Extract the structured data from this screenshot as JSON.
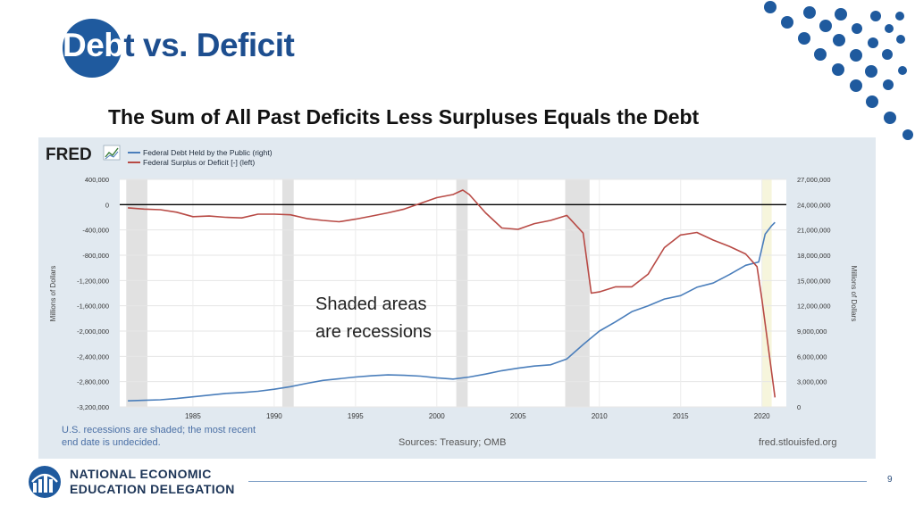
{
  "slide": {
    "title_part1": "Deb",
    "title_part2": "t vs. Deficit",
    "subtitle": "The Sum of All Past Deficits Less Surpluses Equals the Debt",
    "annotation_line1": "Shaded areas",
    "annotation_line2": "are recessions",
    "org_line1": "NATIONAL ECONOMIC",
    "org_line2": "EDUCATION DELEGATION",
    "page_number": "9"
  },
  "colors": {
    "brand_blue": "#1f5a9e",
    "debt_line": "#4a7ebb",
    "deficit_line": "#b84a45",
    "recession_shade": "#e1e1e1",
    "chart_background": "#e1e9f0",
    "plot_background": "#ffffff"
  },
  "chart_data": {
    "type": "line",
    "brand": "FRED",
    "x_ticks": [
      "1985",
      "1990",
      "1995",
      "2000",
      "2005",
      "2010",
      "2015",
      "2020"
    ],
    "x_range": [
      1980.5,
      2021.5
    ],
    "left_axis": {
      "label": "Millions of Dollars",
      "range": [
        -3200000,
        400000
      ],
      "ticks": [
        400000,
        0,
        -400000,
        -800000,
        -1200000,
        -1600000,
        -2000000,
        -2400000,
        -2800000,
        -3200000
      ],
      "tick_labels": [
        "400,000",
        "0",
        "-400,000",
        "-800,000",
        "-1,200,000",
        "-1,600,000",
        "-2,000,000",
        "-2,400,000",
        "-2,800,000",
        "-3,200,000"
      ]
    },
    "right_axis": {
      "label": "Millions of Dollars",
      "range": [
        0,
        27000000
      ],
      "ticks": [
        27000000,
        24000000,
        21000000,
        18000000,
        15000000,
        12000000,
        9000000,
        6000000,
        3000000,
        0
      ],
      "tick_labels": [
        "27,000,000",
        "24,000,000",
        "21,000,000",
        "18,000,000",
        "15,000,000",
        "12,000,000",
        "9,000,000",
        "6,000,000",
        "3,000,000",
        "0"
      ]
    },
    "recessions": [
      [
        1980.9,
        1982.2
      ],
      [
        1990.5,
        1991.2
      ],
      [
        2001.2,
        2001.9
      ],
      [
        2007.9,
        2009.4
      ],
      [
        2020.0,
        2020.6
      ]
    ],
    "zero_reference": 0,
    "series": [
      {
        "name": "Federal Debt Held by the Public (right)",
        "axis": "right",
        "color": "#4a7ebb",
        "points": [
          [
            1981,
            720000
          ],
          [
            1982,
            780000
          ],
          [
            1983,
            850000
          ],
          [
            1984,
            1000000
          ],
          [
            1985,
            1200000
          ],
          [
            1986,
            1400000
          ],
          [
            1987,
            1600000
          ],
          [
            1988,
            1700000
          ],
          [
            1989,
            1850000
          ],
          [
            1990,
            2100000
          ],
          [
            1991,
            2400000
          ],
          [
            1992,
            2800000
          ],
          [
            1993,
            3150000
          ],
          [
            1994,
            3350000
          ],
          [
            1995,
            3550000
          ],
          [
            1996,
            3700000
          ],
          [
            1997,
            3800000
          ],
          [
            1998,
            3750000
          ],
          [
            1999,
            3650000
          ],
          [
            2000,
            3450000
          ],
          [
            2001,
            3300000
          ],
          [
            2002,
            3550000
          ],
          [
            2003,
            3900000
          ],
          [
            2004,
            4300000
          ],
          [
            2005,
            4600000
          ],
          [
            2006,
            4850000
          ],
          [
            2007,
            5000000
          ],
          [
            2008,
            5700000
          ],
          [
            2009,
            7400000
          ],
          [
            2010,
            9000000
          ],
          [
            2011,
            10100000
          ],
          [
            2012,
            11300000
          ],
          [
            2013,
            12000000
          ],
          [
            2014,
            12800000
          ],
          [
            2015,
            13200000
          ],
          [
            2016,
            14200000
          ],
          [
            2017,
            14700000
          ],
          [
            2018,
            15700000
          ],
          [
            2019,
            16800000
          ],
          [
            2019.8,
            17200000
          ],
          [
            2020.2,
            20500000
          ],
          [
            2020.6,
            21500000
          ],
          [
            2020.8,
            21900000
          ]
        ]
      },
      {
        "name": "Federal Surplus or Deficit [-] (left)",
        "axis": "left",
        "color": "#b84a45",
        "points": [
          [
            1981,
            -50000
          ],
          [
            1982,
            -70000
          ],
          [
            1983,
            -80000
          ],
          [
            1984,
            -120000
          ],
          [
            1985,
            -190000
          ],
          [
            1986,
            -180000
          ],
          [
            1987,
            -200000
          ],
          [
            1988,
            -210000
          ],
          [
            1989,
            -150000
          ],
          [
            1990,
            -150000
          ],
          [
            1991,
            -160000
          ],
          [
            1992,
            -220000
          ],
          [
            1993,
            -250000
          ],
          [
            1994,
            -270000
          ],
          [
            1995,
            -230000
          ],
          [
            1996,
            -180000
          ],
          [
            1997,
            -130000
          ],
          [
            1998,
            -70000
          ],
          [
            1999,
            20000
          ],
          [
            2000,
            110000
          ],
          [
            2001,
            160000
          ],
          [
            2001.6,
            230000
          ],
          [
            2002,
            160000
          ],
          [
            2003,
            -130000
          ],
          [
            2004,
            -370000
          ],
          [
            2005,
            -390000
          ],
          [
            2006,
            -300000
          ],
          [
            2007,
            -250000
          ],
          [
            2008,
            -170000
          ],
          [
            2009,
            -450000
          ],
          [
            2009.5,
            -1400000
          ],
          [
            2010,
            -1380000
          ],
          [
            2011,
            -1300000
          ],
          [
            2012,
            -1300000
          ],
          [
            2013,
            -1100000
          ],
          [
            2014,
            -680000
          ],
          [
            2015,
            -480000
          ],
          [
            2016,
            -440000
          ],
          [
            2017,
            -560000
          ],
          [
            2018,
            -660000
          ],
          [
            2019,
            -780000
          ],
          [
            2019.7,
            -980000
          ],
          [
            2020,
            -1500000
          ],
          [
            2020.8,
            -3050000
          ]
        ]
      }
    ],
    "sources": "Sources: Treasury; OMB",
    "note_line1": "U.S. recessions are shaded; the most recent",
    "note_line2": "end date is undecided.",
    "url": "fred.stlouisfed.org"
  }
}
